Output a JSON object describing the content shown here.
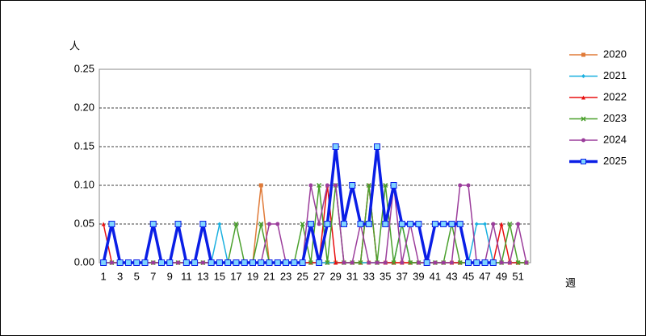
{
  "chart_data": {
    "type": "line",
    "y_axis_label": "人",
    "x_axis_label": "週",
    "categories": [
      1,
      null,
      3,
      null,
      5,
      null,
      7,
      null,
      9,
      null,
      11,
      null,
      13,
      null,
      15,
      null,
      17,
      null,
      19,
      null,
      21,
      null,
      23,
      null,
      25,
      null,
      27,
      null,
      29,
      null,
      31,
      null,
      33,
      null,
      35,
      null,
      37,
      null,
      39,
      null,
      41,
      null,
      43,
      null,
      45,
      null,
      47,
      null,
      49,
      null,
      51,
      null
    ],
    "ylim": [
      0,
      0.25
    ],
    "yticks": [
      {
        "value": 0,
        "label": "0.00"
      },
      {
        "value": 0.05,
        "label": "0.05"
      },
      {
        "value": 0.1,
        "label": "0.10"
      },
      {
        "value": 0.15,
        "label": "0.15"
      },
      {
        "value": 0.2,
        "label": "0.20"
      },
      {
        "value": 0.25,
        "label": "0.25"
      }
    ],
    "grid": true,
    "legend": "right",
    "series": [
      {
        "name": "2020",
        "color": "#e07b39",
        "marker": "square",
        "values": [
          0,
          0,
          0,
          0,
          0,
          0,
          0,
          0,
          0,
          0,
          0,
          0,
          0,
          0,
          0,
          0,
          0,
          0,
          0,
          0.1,
          0,
          0,
          0,
          0,
          0,
          0,
          0,
          0,
          0,
          0,
          0,
          0,
          0,
          0,
          0,
          0,
          0,
          0,
          0,
          0,
          0,
          0,
          0,
          0,
          0,
          0,
          0,
          0,
          0,
          0,
          0,
          0
        ]
      },
      {
        "name": "2021",
        "color": "#1ab0e0",
        "marker": "diamond",
        "values": [
          0,
          0,
          0,
          0,
          0,
          0,
          0,
          0,
          0,
          0,
          0,
          0,
          0,
          0,
          0.05,
          0,
          0,
          0,
          0,
          0,
          0,
          0,
          0,
          0,
          0,
          0,
          0,
          0,
          0,
          0,
          0,
          0,
          0,
          0,
          0,
          0,
          0.05,
          0,
          0,
          0,
          0,
          0,
          0,
          0,
          0,
          0.05,
          0.05,
          0,
          0,
          0,
          0,
          0
        ]
      },
      {
        "name": "2022",
        "color": "#e81010",
        "marker": "triangle",
        "values": [
          0.05,
          0,
          0,
          0,
          0,
          0,
          0,
          0,
          0,
          0,
          0,
          0,
          0,
          0,
          0,
          0,
          0,
          0,
          0,
          0,
          0,
          0,
          0,
          0,
          0,
          0,
          0,
          0.1,
          0,
          0,
          0,
          0,
          0.1,
          0,
          0,
          0,
          0,
          0,
          0,
          0,
          0,
          0,
          0,
          0,
          0,
          0,
          0,
          0,
          0.05,
          0,
          0,
          0
        ]
      },
      {
        "name": "2023",
        "color": "#4aa02c",
        "marker": "x",
        "values": [
          0,
          0,
          0,
          0,
          0,
          0,
          0,
          0,
          0,
          0,
          0,
          0,
          0,
          0,
          0,
          0,
          0.05,
          0,
          0,
          0.05,
          0,
          0,
          0,
          0,
          0.05,
          0,
          0.1,
          0,
          0.1,
          0,
          0,
          0,
          0.1,
          0,
          0.1,
          0,
          0.05,
          0,
          0,
          0,
          0,
          0,
          0.05,
          0,
          0,
          0,
          0,
          0,
          0,
          0.05,
          0,
          0
        ]
      },
      {
        "name": "2024",
        "color": "#9b3d9b",
        "marker": "circle",
        "values": [
          0,
          0,
          0,
          0,
          0,
          0,
          0,
          0,
          0,
          0,
          0,
          0,
          0,
          0,
          0,
          0,
          0,
          0,
          0,
          0,
          0.05,
          0.05,
          0,
          0,
          0,
          0.1,
          0.05,
          0.1,
          0.1,
          0,
          0,
          0.05,
          0,
          0,
          0,
          0.1,
          0,
          0.05,
          0,
          0,
          0,
          0,
          0,
          0.1,
          0.1,
          0,
          0,
          0.05,
          0,
          0,
          0.05,
          0
        ]
      },
      {
        "name": "2025",
        "color": "#0a1ee6",
        "marker": "square-light",
        "values": [
          0,
          0.05,
          0,
          0,
          0,
          0,
          0.05,
          0,
          0,
          0.05,
          0,
          0,
          0.05,
          0,
          0,
          0,
          0,
          0,
          0,
          0,
          0,
          0,
          0,
          0,
          0,
          0.05,
          0,
          0.05,
          0.15,
          0.05,
          0.1,
          0.05,
          0.05,
          0.15,
          0.05,
          0.1,
          0.05,
          0.05,
          0.05,
          0,
          0.05,
          0.05,
          0.05,
          0.05,
          0,
          0,
          0,
          0,
          null,
          null,
          null,
          null
        ]
      }
    ]
  }
}
